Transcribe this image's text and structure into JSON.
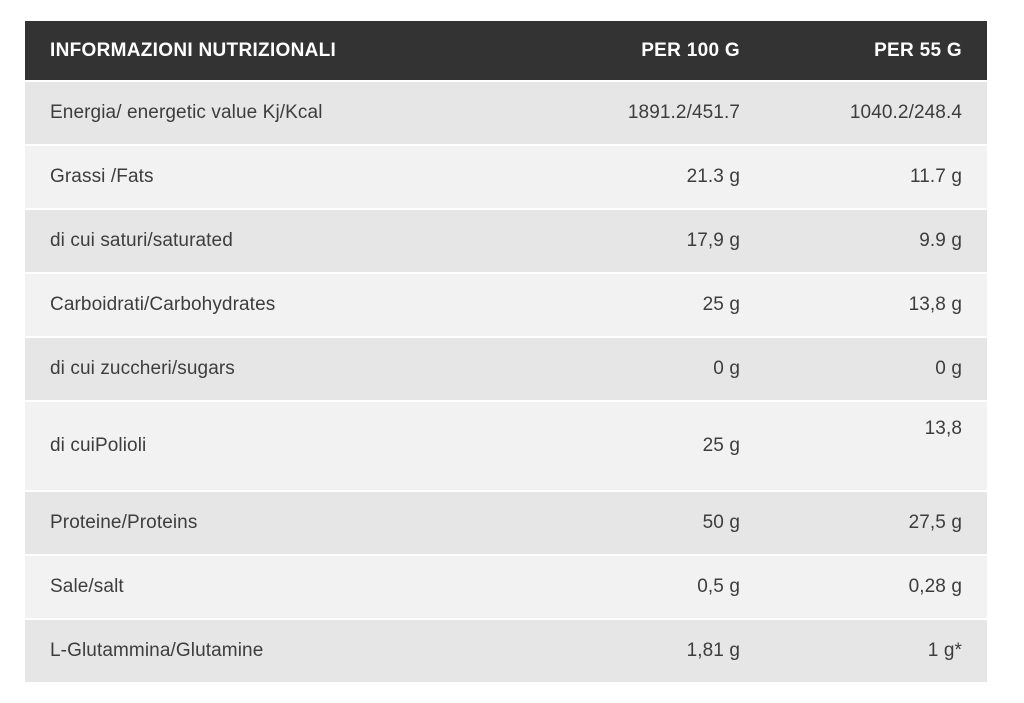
{
  "table": {
    "header": {
      "title": "INFORMAZIONI NUTRIZIONALI",
      "per100": "PER 100 G",
      "per55": "PER 55 G"
    },
    "rows": [
      {
        "label": "Energia/ energetic value Kj/Kcal",
        "per100": "1891.2/451.7",
        "per55": "1040.2/248.4",
        "tall": false
      },
      {
        "label": "Grassi /Fats",
        "per100": "21.3 g",
        "per55": "11.7 g",
        "tall": false
      },
      {
        "label": "di cui saturi/saturated",
        "per100": "17,9 g",
        "per55": "9.9 g",
        "tall": false
      },
      {
        "label": "Carboidrati/Carbohydrates",
        "per100": "25 g",
        "per55": "13,8 g",
        "tall": false
      },
      {
        "label": "di cui zuccheri/sugars",
        "per100": "0 g",
        "per55": "0 g",
        "tall": false
      },
      {
        "label": "di cuiPolioli",
        "per100": "25 g",
        "per55": "13,8",
        "tall": true
      },
      {
        "label": "Proteine/Proteins",
        "per100": "50 g",
        "per55": "27,5 g",
        "tall": false
      },
      {
        "label": "Sale/salt",
        "per100": "0,5 g",
        "per55": "0,28 g",
        "tall": false
      },
      {
        "label": "L-Glutammina/Glutamine",
        "per100": "1,81 g",
        "per55": "1 g*",
        "tall": false
      }
    ],
    "colors": {
      "header_bg": "#333333",
      "header_text": "#ffffff",
      "row_shade_dark": "#e6e6e6",
      "row_shade_light": "#f2f2f2",
      "body_text": "#3d3d3d",
      "page_bg": "#ffffff"
    }
  }
}
